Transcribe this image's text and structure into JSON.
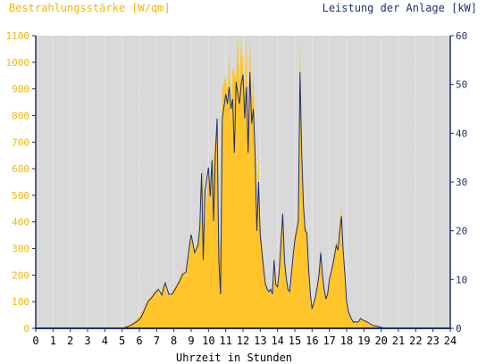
{
  "colors": {
    "plot_bg": "#d9d9d9",
    "irradiance": "#ffc52a",
    "power_line": "#1f2f73",
    "left_axis_text": "#f2b705",
    "right_axis_text": "#1f2f73",
    "axis": "#1f2f73",
    "grid": "#ffffff"
  },
  "chart_data": {
    "type": "area",
    "title_left": "Bestrahlungsstärke [W/qm]",
    "title_right": "Leistung der Anlage [kW]",
    "xlabel": "Uhrzeit in Stunden",
    "x_ticks": [
      0,
      1,
      2,
      3,
      4,
      5,
      6,
      7,
      8,
      9,
      10,
      11,
      12,
      13,
      14,
      15,
      16,
      17,
      18,
      19,
      20,
      21,
      22,
      23,
      24
    ],
    "xlim": [
      0,
      24
    ],
    "y_left": {
      "ticks": [
        0,
        100,
        200,
        300,
        400,
        500,
        600,
        700,
        800,
        900,
        1000,
        1100
      ],
      "lim": [
        0,
        1100
      ]
    },
    "y_right": {
      "ticks": [
        0,
        10,
        20,
        30,
        40,
        50,
        60
      ],
      "lim": [
        0,
        60
      ]
    },
    "grid": "vertical dotted",
    "series": [
      {
        "name": "Bestrahlungsstärke",
        "axis": "left",
        "style": "filled area",
        "points": [
          [
            0,
            0
          ],
          [
            5.0,
            0
          ],
          [
            5.2,
            10
          ],
          [
            5.5,
            15
          ],
          [
            5.8,
            30
          ],
          [
            6.0,
            45
          ],
          [
            6.3,
            80
          ],
          [
            6.5,
            110
          ],
          [
            6.8,
            130
          ],
          [
            7.0,
            150
          ],
          [
            7.2,
            120
          ],
          [
            7.4,
            175
          ],
          [
            7.6,
            130
          ],
          [
            7.8,
            120
          ],
          [
            8.0,
            150
          ],
          [
            8.3,
            180
          ],
          [
            8.5,
            220
          ],
          [
            8.7,
            190
          ],
          [
            8.9,
            300
          ],
          [
            9.0,
            360
          ],
          [
            9.2,
            290
          ],
          [
            9.4,
            330
          ],
          [
            9.6,
            430
          ],
          [
            9.7,
            640
          ],
          [
            9.8,
            380
          ],
          [
            10.0,
            580
          ],
          [
            10.1,
            470
          ],
          [
            10.2,
            600
          ],
          [
            10.4,
            700
          ],
          [
            10.5,
            800
          ],
          [
            10.6,
            350
          ],
          [
            10.7,
            300
          ],
          [
            10.8,
            900
          ],
          [
            11.0,
            950
          ],
          [
            11.1,
            860
          ],
          [
            11.2,
            1040
          ],
          [
            11.3,
            780
          ],
          [
            11.4,
            980
          ],
          [
            11.5,
            960
          ],
          [
            11.6,
            940
          ],
          [
            11.7,
            1100
          ],
          [
            11.8,
            920
          ],
          [
            11.9,
            1100
          ],
          [
            12.0,
            990
          ],
          [
            12.1,
            880
          ],
          [
            12.2,
            1100
          ],
          [
            12.3,
            700
          ],
          [
            12.4,
            1100
          ],
          [
            12.5,
            840
          ],
          [
            12.6,
            960
          ],
          [
            12.7,
            700
          ],
          [
            12.8,
            360
          ],
          [
            12.9,
            660
          ],
          [
            13.0,
            400
          ],
          [
            13.2,
            240
          ],
          [
            13.3,
            170
          ],
          [
            13.4,
            160
          ],
          [
            13.5,
            140
          ],
          [
            13.7,
            120
          ],
          [
            13.8,
            290
          ],
          [
            13.9,
            170
          ],
          [
            14.0,
            150
          ],
          [
            14.1,
            220
          ],
          [
            14.3,
            400
          ],
          [
            14.4,
            260
          ],
          [
            14.5,
            190
          ],
          [
            14.6,
            140
          ],
          [
            14.7,
            130
          ],
          [
            14.8,
            200
          ],
          [
            14.9,
            280
          ],
          [
            15.0,
            350
          ],
          [
            15.1,
            380
          ],
          [
            15.2,
            420
          ],
          [
            15.3,
            1100
          ],
          [
            15.4,
            700
          ],
          [
            15.5,
            450
          ],
          [
            15.6,
            380
          ],
          [
            15.7,
            370
          ],
          [
            15.8,
            240
          ],
          [
            15.9,
            120
          ],
          [
            16.0,
            80
          ],
          [
            16.2,
            120
          ],
          [
            16.3,
            160
          ],
          [
            16.4,
            200
          ],
          [
            16.5,
            300
          ],
          [
            16.6,
            210
          ],
          [
            16.7,
            150
          ],
          [
            16.8,
            110
          ],
          [
            16.9,
            130
          ],
          [
            17.0,
            190
          ],
          [
            17.2,
            240
          ],
          [
            17.3,
            280
          ],
          [
            17.4,
            330
          ],
          [
            17.5,
            300
          ],
          [
            17.6,
            400
          ],
          [
            17.7,
            460
          ],
          [
            17.8,
            300
          ],
          [
            17.9,
            200
          ],
          [
            18.0,
            100
          ],
          [
            18.1,
            60
          ],
          [
            18.2,
            40
          ],
          [
            18.3,
            30
          ],
          [
            18.4,
            20
          ],
          [
            18.5,
            25
          ],
          [
            18.6,
            20
          ],
          [
            18.7,
            25
          ],
          [
            18.8,
            40
          ],
          [
            18.9,
            35
          ],
          [
            19.0,
            30
          ],
          [
            19.2,
            25
          ],
          [
            19.4,
            15
          ],
          [
            19.6,
            10
          ],
          [
            19.8,
            8
          ],
          [
            20.0,
            4
          ],
          [
            20.2,
            0
          ],
          [
            24,
            0
          ]
        ]
      },
      {
        "name": "Leistung der Anlage",
        "axis": "right",
        "style": "line",
        "points": [
          [
            0,
            0
          ],
          [
            5.0,
            0
          ],
          [
            5.3,
            0.3
          ],
          [
            5.6,
            0.8
          ],
          [
            5.9,
            1.5
          ],
          [
            6.1,
            2.2
          ],
          [
            6.3,
            3.8
          ],
          [
            6.5,
            5.5
          ],
          [
            6.7,
            6.2
          ],
          [
            6.9,
            7.2
          ],
          [
            7.1,
            8.0
          ],
          [
            7.3,
            6.8
          ],
          [
            7.5,
            9.3
          ],
          [
            7.7,
            7.0
          ],
          [
            7.9,
            7.0
          ],
          [
            8.1,
            8.2
          ],
          [
            8.3,
            9.5
          ],
          [
            8.5,
            11.0
          ],
          [
            8.7,
            11.5
          ],
          [
            8.9,
            17.0
          ],
          [
            9.0,
            19.2
          ],
          [
            9.2,
            15.5
          ],
          [
            9.4,
            17.0
          ],
          [
            9.5,
            21.0
          ],
          [
            9.6,
            31.8
          ],
          [
            9.7,
            14.0
          ],
          [
            9.8,
            28.0
          ],
          [
            10.0,
            33.0
          ],
          [
            10.1,
            27.0
          ],
          [
            10.2,
            34.5
          ],
          [
            10.3,
            22.0
          ],
          [
            10.4,
            36.0
          ],
          [
            10.5,
            43.0
          ],
          [
            10.6,
            14.0
          ],
          [
            10.7,
            7.0
          ],
          [
            10.8,
            43.0
          ],
          [
            11.0,
            48.0
          ],
          [
            11.1,
            46.0
          ],
          [
            11.2,
            49.5
          ],
          [
            11.3,
            45.0
          ],
          [
            11.4,
            47.0
          ],
          [
            11.5,
            36.0
          ],
          [
            11.6,
            50.5
          ],
          [
            11.7,
            48.0
          ],
          [
            11.8,
            46.0
          ],
          [
            11.9,
            50.2
          ],
          [
            12.0,
            52.0
          ],
          [
            12.1,
            43.0
          ],
          [
            12.2,
            49.5
          ],
          [
            12.3,
            36.0
          ],
          [
            12.4,
            52.5
          ],
          [
            12.5,
            42.0
          ],
          [
            12.6,
            45.0
          ],
          [
            12.7,
            36.0
          ],
          [
            12.8,
            20.0
          ],
          [
            12.9,
            30.0
          ],
          [
            13.0,
            19.0
          ],
          [
            13.2,
            12.0
          ],
          [
            13.3,
            9.0
          ],
          [
            13.4,
            8.0
          ],
          [
            13.5,
            7.5
          ],
          [
            13.6,
            8.0
          ],
          [
            13.7,
            7.0
          ],
          [
            13.8,
            14.0
          ],
          [
            13.9,
            9.0
          ],
          [
            14.0,
            8.5
          ],
          [
            14.1,
            12.0
          ],
          [
            14.3,
            23.5
          ],
          [
            14.4,
            14.0
          ],
          [
            14.5,
            10.5
          ],
          [
            14.6,
            8.0
          ],
          [
            14.7,
            7.5
          ],
          [
            14.8,
            11.0
          ],
          [
            14.9,
            15.0
          ],
          [
            15.0,
            18.0
          ],
          [
            15.1,
            20.0
          ],
          [
            15.2,
            22.0
          ],
          [
            15.3,
            52.5
          ],
          [
            15.4,
            36.0
          ],
          [
            15.5,
            25.0
          ],
          [
            15.6,
            20.0
          ],
          [
            15.7,
            19.5
          ],
          [
            15.8,
            12.0
          ],
          [
            15.9,
            7.0
          ],
          [
            16.0,
            4.0
          ],
          [
            16.2,
            6.5
          ],
          [
            16.3,
            8.5
          ],
          [
            16.4,
            11.0
          ],
          [
            16.5,
            15.5
          ],
          [
            16.6,
            11.0
          ],
          [
            16.7,
            8.0
          ],
          [
            16.8,
            6.0
          ],
          [
            16.9,
            7.0
          ],
          [
            17.0,
            10.0
          ],
          [
            17.2,
            13.0
          ],
          [
            17.3,
            15.0
          ],
          [
            17.4,
            17.0
          ],
          [
            17.5,
            16.0
          ],
          [
            17.6,
            20.0
          ],
          [
            17.7,
            23.0
          ],
          [
            17.8,
            16.0
          ],
          [
            17.9,
            11.0
          ],
          [
            18.0,
            5.5
          ],
          [
            18.1,
            3.5
          ],
          [
            18.2,
            2.5
          ],
          [
            18.3,
            1.8
          ],
          [
            18.4,
            1.2
          ],
          [
            18.5,
            1.4
          ],
          [
            18.6,
            1.2
          ],
          [
            18.7,
            1.4
          ],
          [
            18.8,
            2.0
          ],
          [
            18.9,
            1.8
          ],
          [
            19.0,
            1.6
          ],
          [
            19.2,
            1.3
          ],
          [
            19.4,
            0.8
          ],
          [
            19.6,
            0.5
          ],
          [
            19.8,
            0.4
          ],
          [
            20.0,
            0.2
          ],
          [
            20.2,
            0
          ],
          [
            24,
            0
          ]
        ]
      }
    ]
  }
}
